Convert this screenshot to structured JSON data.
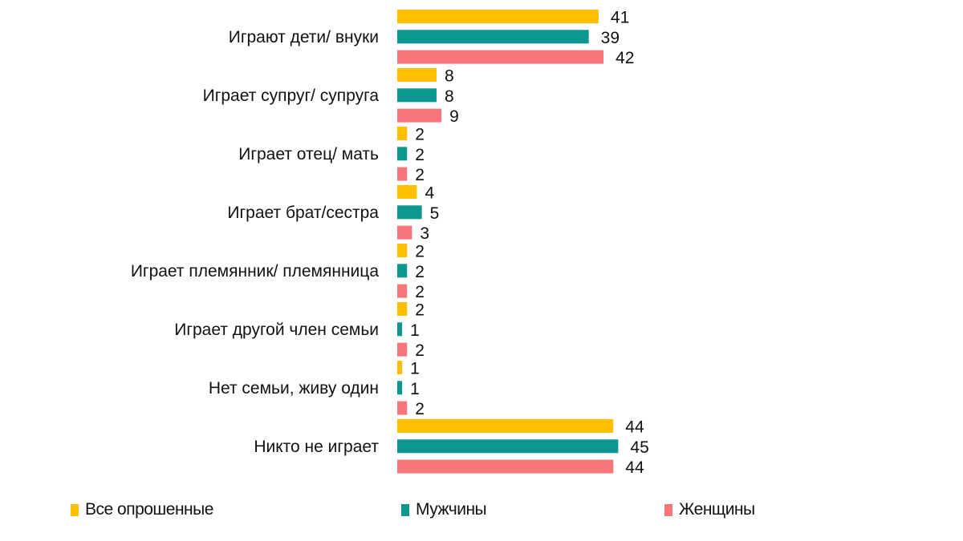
{
  "chart_data": {
    "type": "bar",
    "orientation": "horizontal",
    "categories": [
      "Играют дети/ внуки",
      "Играет супруг/ супруга",
      "Играет отец/ мать",
      "Играет брат/сестра",
      "Играет племянник/ племянница",
      "Играет другой член семьи",
      "Нет семьи, живу один",
      "Никто не играет"
    ],
    "series": [
      {
        "name": "Все опрошенные",
        "color": "#FFBF00",
        "values": [
          41,
          8,
          2,
          4,
          2,
          2,
          1,
          44
        ]
      },
      {
        "name": "Мужчины",
        "color": "#0E9690",
        "values": [
          39,
          8,
          2,
          5,
          2,
          1,
          1,
          45
        ]
      },
      {
        "name": "Женщины",
        "color": "#F7767A",
        "values": [
          42,
          9,
          2,
          3,
          2,
          2,
          2,
          44
        ]
      }
    ],
    "xlim": [
      0,
      50
    ],
    "grid": false,
    "legend_position": "bottom"
  }
}
